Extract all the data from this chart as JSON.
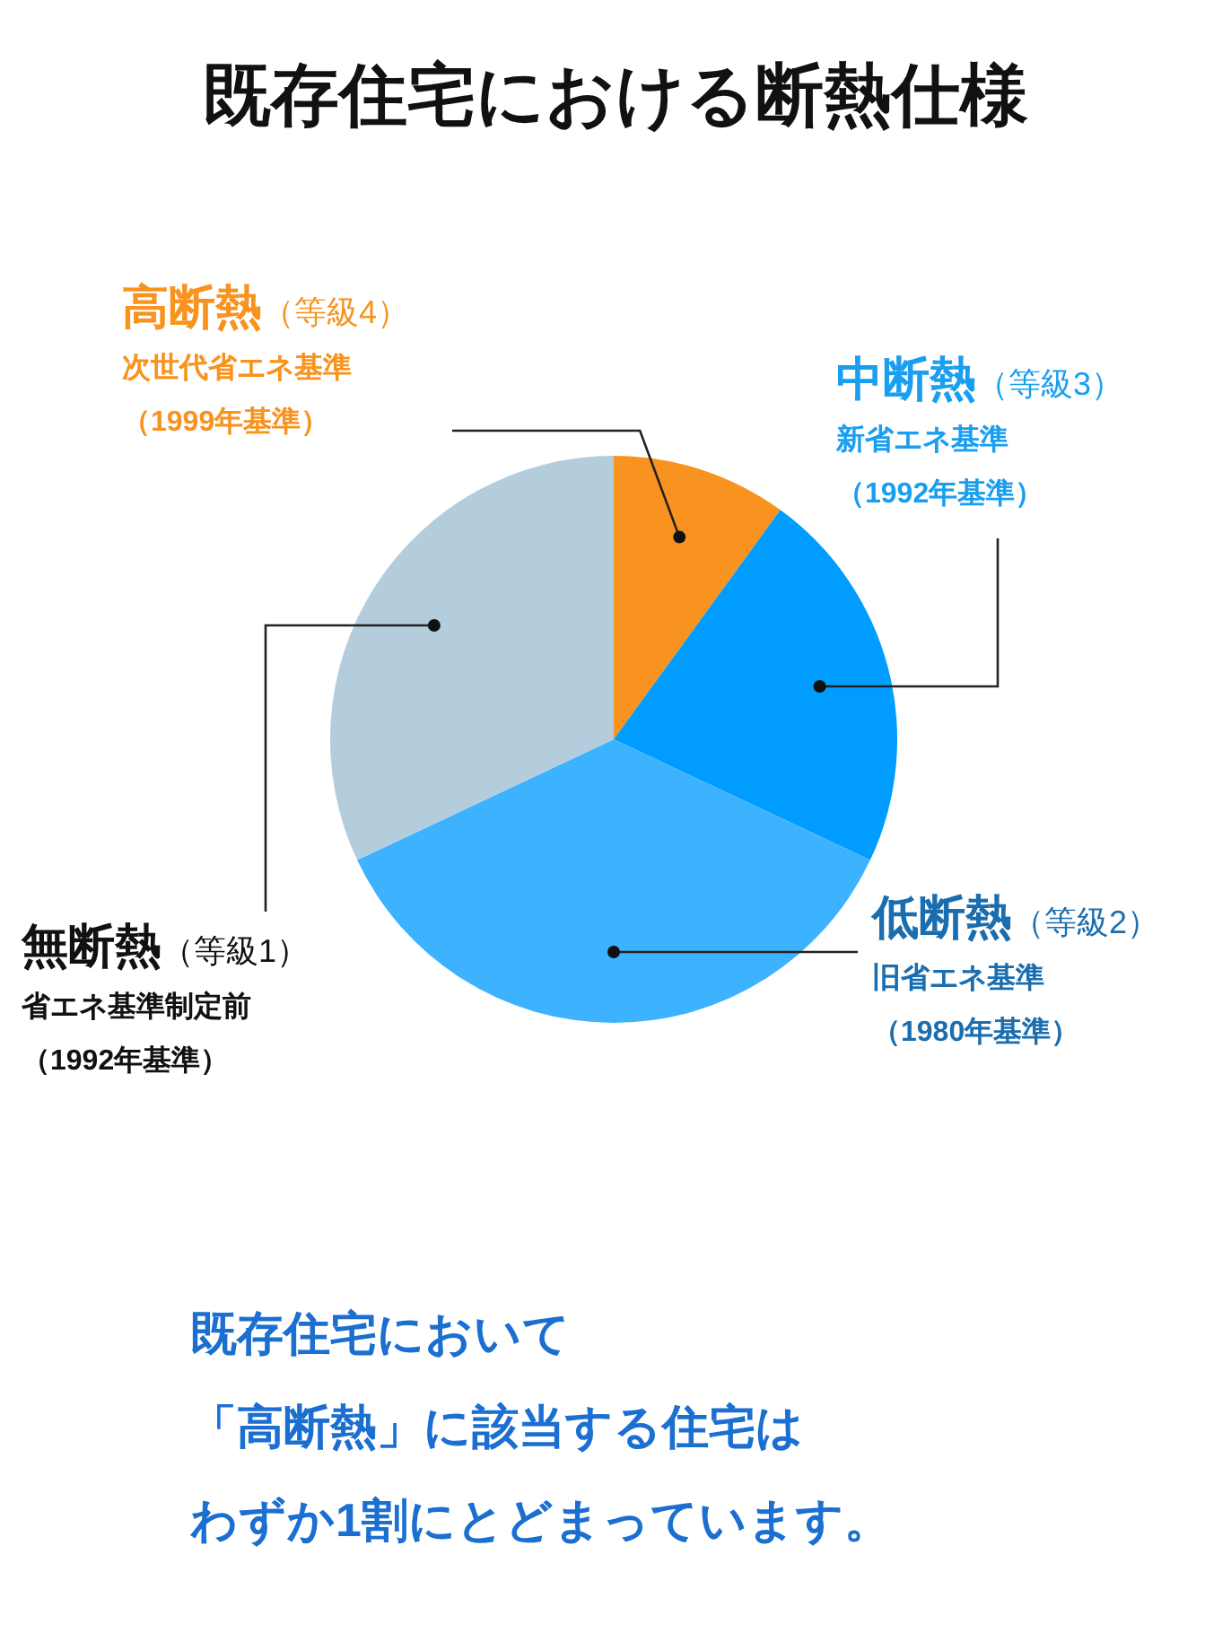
{
  "chart_data": {
    "type": "pie",
    "title": "既存住宅における断熱仕様",
    "categories": [
      "高断熱（等級4）次世代省エネ基準（1999年基準）",
      "中断熱（等級3）新省エネ基準（1992年基準）",
      "低断熱（等級2）旧省エネ基準（1980年基準）",
      "無断熱（等級1）省エネ基準制定前（1992年基準）"
    ],
    "values": [
      10,
      22,
      36,
      32
    ],
    "colors": [
      "#f7931e",
      "#009cff",
      "#3db2ff",
      "#b4cddd"
    ],
    "annotations": [
      "既存住宅において",
      "「高断熱」に該当する住宅は",
      "わずか1割にとどまっています。"
    ]
  }
}
